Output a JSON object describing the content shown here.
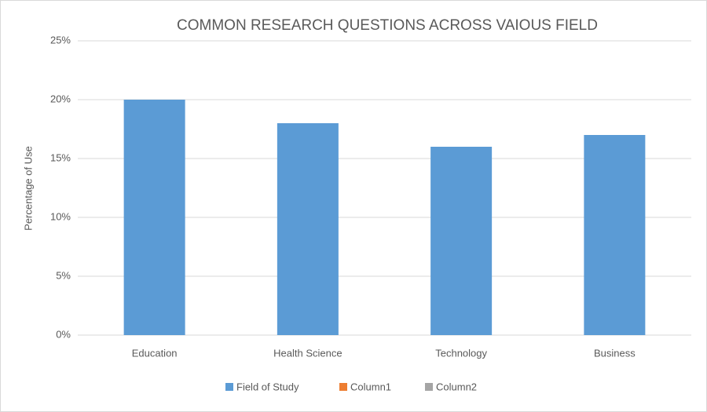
{
  "chart_data": {
    "type": "bar",
    "title": "COMMON RESEARCH QUESTIONS ACROSS VAIOUS FIELD",
    "y_label": "Percentage of Use",
    "categories": [
      "Education",
      "Health Science",
      "Technology",
      "Business"
    ],
    "series": [
      {
        "name": "Field of Study",
        "color": "#5b9bd5",
        "values": [
          20,
          18,
          16,
          17
        ]
      },
      {
        "name": "Column1",
        "color": "#ed7d31",
        "values": [
          null,
          null,
          null,
          null
        ]
      },
      {
        "name": "Column2",
        "color": "#a5a5a5",
        "values": [
          null,
          null,
          null,
          null
        ]
      }
    ],
    "ylim": [
      0,
      25
    ],
    "yticks": [
      {
        "value": 0,
        "label": "0%"
      },
      {
        "value": 5,
        "label": "5%"
      },
      {
        "value": 10,
        "label": "10%"
      },
      {
        "value": 15,
        "label": "15%"
      },
      {
        "value": 20,
        "label": "20%"
      },
      {
        "value": 25,
        "label": "25%"
      }
    ],
    "grid": true,
    "legend": "bottom"
  }
}
